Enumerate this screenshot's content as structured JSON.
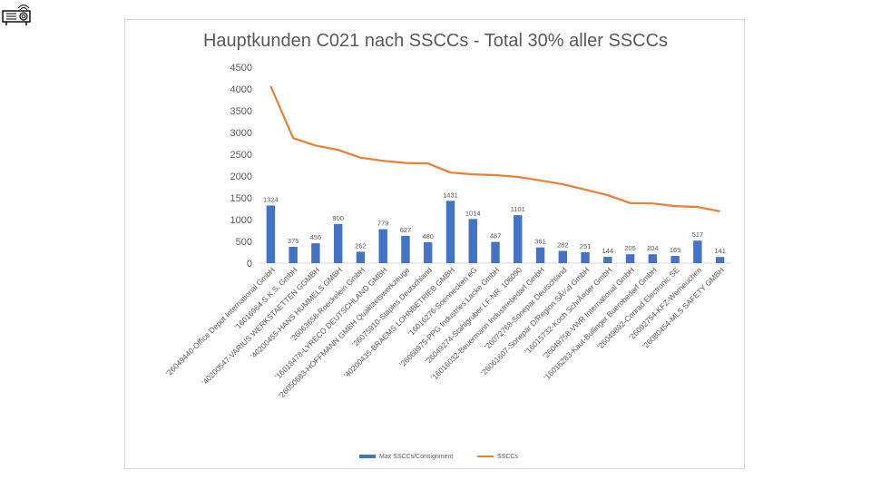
{
  "chart_data": {
    "type": "bar+line",
    "title": "Hauptkunden C021 nach SSCCs - Total 30% aller SSCCs",
    "xlabel": "",
    "ylabel": "",
    "ylim": [
      0,
      4500
    ],
    "yticks": [
      "0",
      "500",
      "1000",
      "1500",
      "2000",
      "2500",
      "3000",
      "3500",
      "4000",
      "4500"
    ],
    "grid": false,
    "legend_position": "bottom",
    "categories": [
      "'26049440-Office Depot International GmbH",
      "'16016964-S.K.S. GmbH",
      "'40200547-VARIUS WERKSTAETTEN GGMBH",
      "'40200455-HANS HUMMELS GMBH",
      "'26063658-Roeckelein GmbH",
      "'16018478-LYRECO DEUTSCHLAND GMBH",
      "'26050683-HOFFMANN GMBH Qualitaetswerkzeuge",
      "'26075910-Staples Deutschland",
      "'40200435-BRAEMS LOHNBETRIEB GMBH",
      "'16016276-Soennecken eG",
      "'26068975-PPG Industries Lacke GmbH",
      "'26049274-Stahlgruber LF-NR. 106090",
      "'16016032-Beuermann Industriebedarf GmbH",
      "'26072768-Sonepar Deutschland",
      "'26061607-Sonepar D/Region SÃ¼d GmbH",
      "'16015732-Koch SchrÃ¤der GmbH",
      "'26049758-VWR International GmbH",
      "'16016283-Kaut-Bullinger Buerobedarf GmbH",
      "'26049892-Conrad Electronic SE",
      "'26092754-KFZ-Werneuchen",
      "'26080454-MLS SAFETY GMBH"
    ],
    "series": [
      {
        "name": "Max SSCCs/Consignment",
        "type": "bar",
        "color": "#4472c4",
        "values": [
          1324,
          375,
          456,
          900,
          262,
          779,
          627,
          480,
          1431,
          1014,
          487,
          1101,
          361,
          282,
          251,
          144,
          205,
          204,
          165,
          517,
          141
        ],
        "labels": [
          "1324",
          "375",
          "456",
          "900",
          "262",
          "779",
          "627",
          "480",
          "1431",
          "1014",
          "487",
          "1101",
          "361",
          "282",
          "251",
          "144",
          "205",
          "204",
          "165",
          "517",
          "141"
        ]
      },
      {
        "name": "SSCCs",
        "type": "line",
        "color": "#ed7d31",
        "values": [
          4060,
          2870,
          2700,
          2600,
          2420,
          2350,
          2300,
          2290,
          2080,
          2040,
          2020,
          1980,
          1900,
          1810,
          1690,
          1560,
          1380,
          1370,
          1310,
          1290,
          1190
        ]
      }
    ]
  }
}
